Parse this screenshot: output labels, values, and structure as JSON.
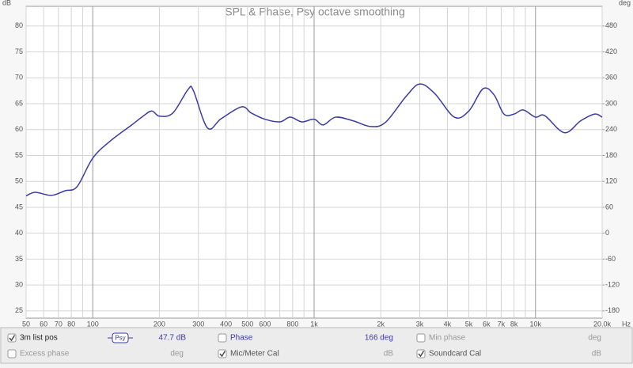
{
  "chart_data": {
    "type": "line",
    "title": "SPL & Phase, Psy octave smoothing",
    "y_unit": "dB",
    "y2_unit": "deg",
    "x_unit": "Hz",
    "xscale": "log",
    "grid": true,
    "x": [
      50,
      55,
      65,
      75,
      85,
      100,
      120,
      150,
      170,
      185,
      200,
      230,
      270,
      285,
      330,
      380,
      470,
      520,
      600,
      700,
      780,
      880,
      1000,
      1100,
      1250,
      1500,
      1800,
      2100,
      2600,
      3000,
      3500,
      4300,
      5000,
      5800,
      6500,
      7200,
      8000,
      8800,
      10000,
      11000,
      13500,
      16000,
      18500,
      20000
    ],
    "series": [
      {
        "name": "3m list pos",
        "color": "#3b3ba6",
        "values": [
          47.2,
          47.9,
          47.3,
          48.2,
          49,
          54.5,
          57.8,
          60.9,
          62.7,
          63.6,
          62.6,
          63.2,
          67.8,
          67.5,
          60.3,
          62.1,
          64.4,
          63.2,
          62,
          61.5,
          62.4,
          61.5,
          62,
          60.9,
          62.4,
          61.7,
          60.6,
          61.4,
          66.4,
          68.8,
          67,
          62.4,
          63.6,
          67.9,
          66.7,
          63,
          63,
          63.8,
          62.4,
          62.7,
          59.4,
          61.7,
          63,
          62.4
        ]
      }
    ],
    "xlim": [
      50,
      20000
    ],
    "xticks": [
      50,
      60,
      70,
      80,
      100,
      200,
      300,
      400,
      500,
      600,
      800,
      {
        "value": 1000,
        "label": "1k"
      },
      {
        "value": 2000,
        "label": "2k"
      },
      {
        "value": 3000,
        "label": "3k"
      },
      {
        "value": 4000,
        "label": "4k"
      },
      {
        "value": 5000,
        "label": "5k"
      },
      {
        "value": 6000,
        "label": "6k"
      },
      {
        "value": 7000,
        "label": "7k"
      },
      {
        "value": 8000,
        "label": "8k"
      },
      {
        "value": 10000,
        "label": "10k"
      },
      {
        "value": 20000,
        "label": "20.0k"
      }
    ],
    "x_minor_ticks": [
      90,
      700,
      900,
      9000
    ],
    "ylim": [
      23.6,
      83.8
    ],
    "yticks": [
      25,
      30,
      35,
      40,
      45,
      50,
      55,
      60,
      65,
      70,
      75,
      80
    ],
    "y2lim": [
      -196.8,
      525.6
    ],
    "y2ticks": [
      -180,
      -120,
      -60,
      0,
      60,
      120,
      180,
      240,
      300,
      360,
      420,
      480
    ]
  },
  "panel": {
    "series_checked": true,
    "smoothing": "Psy",
    "readout": "47.7 dB",
    "items": [
      {
        "label": "Phase",
        "checked": false,
        "value": "166 deg"
      },
      {
        "label": "Min phase",
        "checked": false,
        "unit": "deg"
      },
      {
        "label": "Excess phase",
        "checked": false,
        "unit": "deg"
      },
      {
        "label": "Mic/Meter Cal",
        "checked": true,
        "unit": "dB"
      },
      {
        "label": "Soundcard Cal",
        "checked": true,
        "unit": "dB"
      }
    ]
  }
}
